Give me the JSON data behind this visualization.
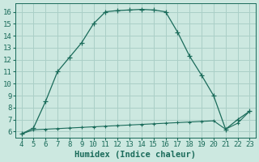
{
  "xlabel": "Humidex (Indice chaleur)",
  "bg_color": "#cce8e0",
  "grid_color": "#aacfc7",
  "line_color": "#1a6b5a",
  "xlim": [
    3.5,
    23.5
  ],
  "ylim": [
    5.5,
    16.7
  ],
  "xticks": [
    4,
    5,
    6,
    7,
    8,
    9,
    10,
    11,
    12,
    13,
    14,
    15,
    16,
    17,
    18,
    19,
    20,
    21,
    22,
    23
  ],
  "yticks": [
    6,
    7,
    8,
    9,
    10,
    11,
    12,
    13,
    14,
    15,
    16
  ],
  "curve1_x": [
    4,
    5,
    6,
    7,
    8,
    9,
    10,
    11,
    12,
    13,
    14,
    15,
    16,
    17,
    18,
    19,
    20,
    21,
    22,
    23
  ],
  "curve1_y": [
    5.8,
    6.3,
    8.5,
    11.0,
    12.2,
    13.4,
    15.0,
    16.0,
    16.1,
    16.15,
    16.2,
    16.15,
    16.0,
    14.3,
    12.3,
    10.7,
    9.0,
    6.2,
    7.0,
    7.7
  ],
  "curve2_x": [
    4,
    5,
    6,
    7,
    8,
    9,
    10,
    11,
    12,
    13,
    14,
    15,
    16,
    17,
    18,
    19,
    20,
    21,
    22,
    23
  ],
  "curve2_y": [
    5.8,
    6.15,
    6.2,
    6.25,
    6.3,
    6.35,
    6.4,
    6.45,
    6.5,
    6.55,
    6.6,
    6.65,
    6.7,
    6.75,
    6.8,
    6.85,
    6.9,
    6.2,
    6.7,
    7.7
  ],
  "xlabel_fontsize": 7.5,
  "tick_fontsize": 6.5
}
